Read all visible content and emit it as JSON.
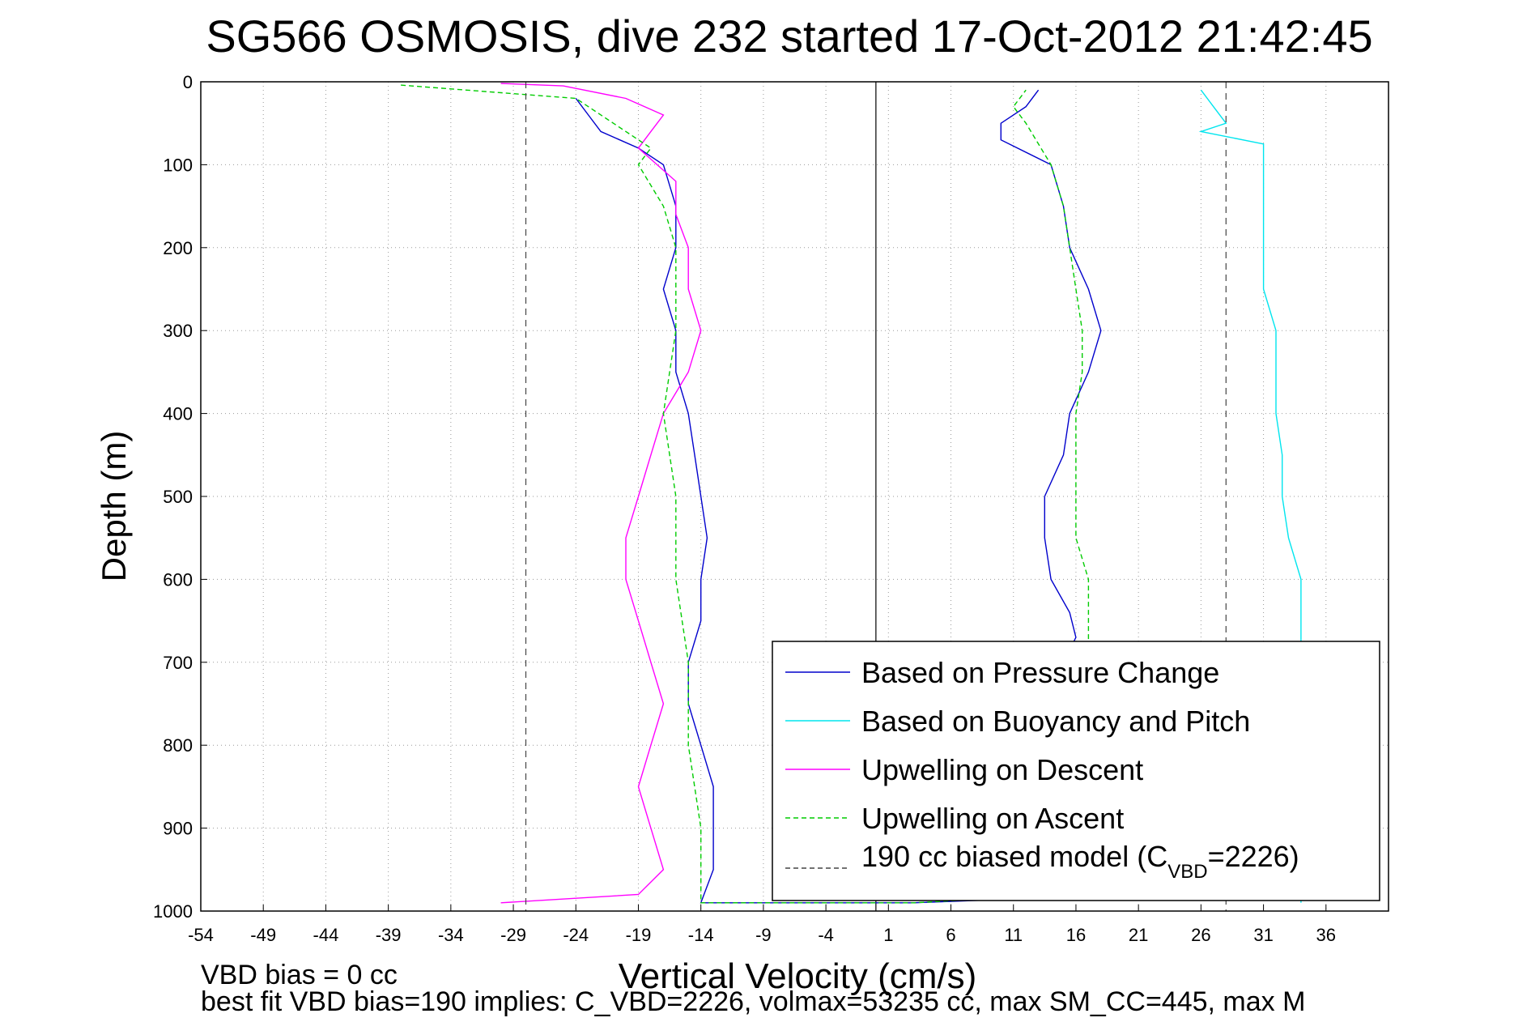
{
  "chart_data": {
    "type": "line",
    "title": "SG566 OSMOSIS, dive 232 started 17-Oct-2012 21:42:45",
    "xlabel": "Vertical Velocity (cm/s)",
    "ylabel": "Depth (m)",
    "xlim": [
      -54,
      41
    ],
    "ylim": [
      0,
      1000
    ],
    "y_reversed": true,
    "grid": true,
    "xticks": [
      -54,
      -49,
      -44,
      -39,
      -34,
      -29,
      -24,
      -19,
      -14,
      -9,
      -4,
      1,
      6,
      11,
      16,
      21,
      26,
      31,
      36
    ],
    "yticks": [
      0,
      100,
      200,
      300,
      400,
      500,
      600,
      700,
      800,
      900,
      1000
    ],
    "legend_position": "bottom-right",
    "colors": {
      "pressure": "#0000cc",
      "buoyancy": "#00e5ee",
      "upwelling_descent": "#ff00ff",
      "upwelling_ascent": "#00cc00",
      "model": "#444444"
    },
    "legend": [
      {
        "label": "Based on Pressure Change",
        "color": "#0000cc",
        "dash": "solid"
      },
      {
        "label": "Based on Buoyancy and Pitch",
        "color": "#00e5ee",
        "dash": "solid"
      },
      {
        "label": "Upwelling on Descent",
        "color": "#ff00ff",
        "dash": "solid"
      },
      {
        "label": "Upwelling on Ascent",
        "color": "#00cc00",
        "dash": "dashed"
      },
      {
        "label_main": "190 cc biased model (C",
        "label_sub": "VBD",
        "label_end": "=2226)",
        "color": "#444444",
        "dash": "dashed"
      }
    ],
    "series": [
      {
        "name": "Based on Pressure Change",
        "color": "#0000cc",
        "points": [
          [
            -24,
            20
          ],
          [
            -23,
            40
          ],
          [
            -22,
            60
          ],
          [
            -19,
            80
          ],
          [
            -17,
            100
          ],
          [
            -16,
            150
          ],
          [
            -16,
            200
          ],
          [
            -17,
            250
          ],
          [
            -16,
            300
          ],
          [
            -16,
            350
          ],
          [
            -15,
            400
          ],
          [
            -14.5,
            450
          ],
          [
            -14,
            500
          ],
          [
            -13.5,
            550
          ],
          [
            -14,
            600
          ],
          [
            -14,
            650
          ],
          [
            -15,
            700
          ],
          [
            -15,
            750
          ],
          [
            -14,
            800
          ],
          [
            -13,
            850
          ],
          [
            -13,
            900
          ],
          [
            -13,
            950
          ],
          [
            -14,
            990
          ],
          [
            3,
            990
          ],
          [
            12,
            985
          ],
          [
            14,
            970
          ],
          [
            15,
            900
          ],
          [
            15,
            800
          ],
          [
            15,
            700
          ],
          [
            16,
            670
          ],
          [
            15.5,
            640
          ],
          [
            14,
            600
          ],
          [
            13.5,
            550
          ],
          [
            13.5,
            500
          ],
          [
            15,
            450
          ],
          [
            15.5,
            400
          ],
          [
            17,
            350
          ],
          [
            18,
            300
          ],
          [
            17,
            250
          ],
          [
            15.5,
            200
          ],
          [
            15,
            150
          ],
          [
            14,
            100
          ],
          [
            10,
            70
          ],
          [
            10,
            50
          ],
          [
            12,
            30
          ],
          [
            13,
            10
          ]
        ]
      },
      {
        "name": "Based on Buoyancy and Pitch",
        "color": "#00e5ee",
        "points": [
          [
            26,
            10
          ],
          [
            27,
            30
          ],
          [
            28,
            50
          ],
          [
            26,
            60
          ],
          [
            31,
            75
          ],
          [
            31,
            100
          ],
          [
            31,
            150
          ],
          [
            31,
            200
          ],
          [
            31,
            250
          ],
          [
            32,
            300
          ],
          [
            32,
            350
          ],
          [
            32,
            400
          ],
          [
            32.5,
            450
          ],
          [
            32.5,
            500
          ],
          [
            33,
            550
          ],
          [
            34,
            600
          ],
          [
            34,
            650
          ],
          [
            34,
            700
          ],
          [
            34,
            800
          ],
          [
            34,
            900
          ],
          [
            34,
            990
          ]
        ]
      },
      {
        "name": "Upwelling on Descent",
        "color": "#ff00ff",
        "points": [
          [
            -30,
            2
          ],
          [
            -25,
            5
          ],
          [
            -20,
            20
          ],
          [
            -17,
            40
          ],
          [
            -18,
            60
          ],
          [
            -19,
            80
          ],
          [
            -16,
            120
          ],
          [
            -16,
            160
          ],
          [
            -15,
            200
          ],
          [
            -15,
            250
          ],
          [
            -14,
            300
          ],
          [
            -15,
            350
          ],
          [
            -17,
            400
          ],
          [
            -18,
            450
          ],
          [
            -19,
            500
          ],
          [
            -20,
            550
          ],
          [
            -20,
            600
          ],
          [
            -19,
            650
          ],
          [
            -18,
            700
          ],
          [
            -17,
            750
          ],
          [
            -18,
            800
          ],
          [
            -19,
            850
          ],
          [
            -18,
            900
          ],
          [
            -17,
            950
          ],
          [
            -19,
            980
          ],
          [
            -30,
            990
          ]
        ]
      },
      {
        "name": "Upwelling on Ascent",
        "color": "#00cc00",
        "points": [
          [
            -38,
            4
          ],
          [
            -24,
            20
          ],
          [
            -21,
            50
          ],
          [
            -18,
            80
          ],
          [
            -19,
            100
          ],
          [
            -17,
            150
          ],
          [
            -16,
            200
          ],
          [
            -16,
            300
          ],
          [
            -17,
            400
          ],
          [
            -16,
            500
          ],
          [
            -16,
            600
          ],
          [
            -15,
            700
          ],
          [
            -15,
            800
          ],
          [
            -14,
            900
          ],
          [
            -14,
            990
          ],
          [
            3,
            990
          ],
          [
            16,
            980
          ],
          [
            16.5,
            900
          ],
          [
            16.5,
            800
          ],
          [
            17,
            700
          ],
          [
            17,
            650
          ],
          [
            17,
            600
          ],
          [
            16,
            550
          ],
          [
            16,
            500
          ],
          [
            16,
            450
          ],
          [
            16,
            400
          ],
          [
            16.5,
            350
          ],
          [
            16.5,
            300
          ],
          [
            16,
            250
          ],
          [
            15.5,
            200
          ],
          [
            15,
            150
          ],
          [
            14,
            100
          ],
          [
            12,
            50
          ],
          [
            11,
            30
          ],
          [
            12,
            10
          ]
        ]
      },
      {
        "name": "190 cc biased model (C_VBD=2226)",
        "color": "#444444",
        "points_left": [
          [
            -28,
            0
          ],
          [
            -28,
            1000
          ]
        ],
        "points_right": [
          [
            28,
            0
          ],
          [
            28,
            1000
          ]
        ]
      }
    ],
    "reference_line_x": 0
  },
  "annotations": {
    "vbd_bias": "VBD bias = 0 cc",
    "best_fit": "best fit VBD bias=190 implies: C_VBD=2226, volmax=53235 cc, max SM_CC=445, max M"
  }
}
